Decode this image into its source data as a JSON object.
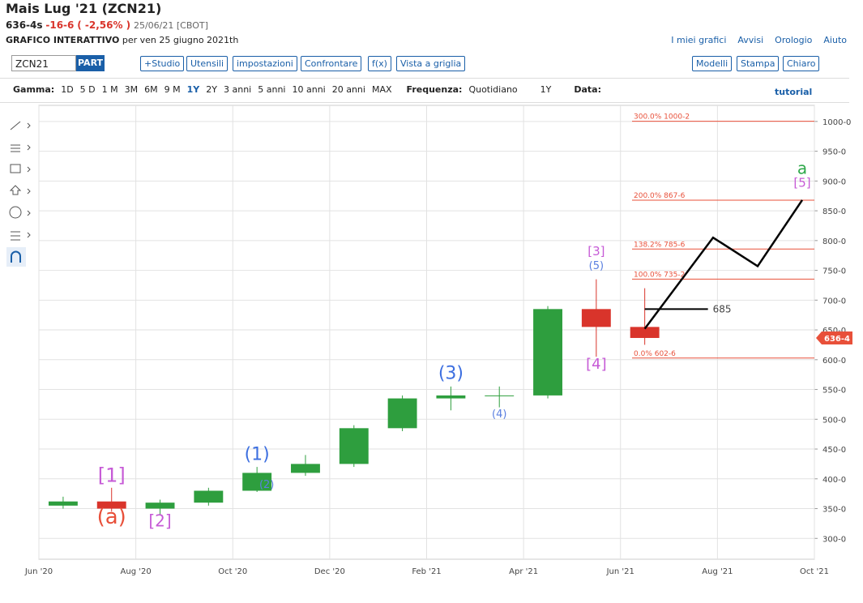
{
  "header": {
    "title": "Mais Lug '21 (ZCN21)",
    "last": "636-4s",
    "change": "-16-6",
    "change_pct": "( -2,56% )",
    "date": "25/06/21 [CBOT]",
    "mode": "GRAFICO INTERATTIVO",
    "mode_date": "per ven 25 giugno 2021th",
    "links": [
      "I miei grafici",
      "Avvisi",
      "Orologio",
      "Aiuto"
    ]
  },
  "toolbar": {
    "symbol": "ZCN21",
    "part": "PART",
    "buttons": [
      "+Studio",
      "Utensili",
      "impostazioni",
      "Confrontare",
      "f(x)",
      "Vista a griglia"
    ],
    "right_buttons": [
      "Modelli",
      "Stampa",
      "Chiaro"
    ]
  },
  "range_bar": {
    "label": "Gamma:",
    "ranges": [
      "1D",
      "5 D",
      "1 M",
      "3M",
      "6M",
      "9 M",
      "1Y",
      "2Y",
      "3 anni",
      "5 anni",
      "10 anni",
      "20 anni",
      "MAX"
    ],
    "selected": "1Y",
    "frequency_label": "Frequenza:",
    "frequency": "Quotidiano",
    "period": "1Y",
    "date_label": "Data:",
    "tutorial": "tutorial"
  },
  "chart_data": {
    "type": "candlestick",
    "x": [
      "2020-06",
      "2020-07",
      "2020-08",
      "2020-09",
      "2020-10",
      "2020-11",
      "2020-12",
      "2021-01",
      "2021-02",
      "2021-03",
      "2021-04",
      "2021-05",
      "2021-06"
    ],
    "open": [
      355,
      362,
      350,
      360,
      380,
      410,
      425,
      485,
      535,
      540,
      540,
      685,
      655
    ],
    "high": [
      370,
      385,
      365,
      385,
      420,
      440,
      490,
      540,
      555,
      555,
      690,
      735,
      720
    ],
    "low": [
      350,
      345,
      340,
      355,
      378,
      405,
      420,
      480,
      515,
      520,
      535,
      605,
      625
    ],
    "close": [
      362,
      350,
      360,
      380,
      410,
      425,
      485,
      535,
      540,
      540,
      685,
      655,
      636.5
    ],
    "up_color": "#2e9e3e",
    "down_color": "#d9342b",
    "xlim": [
      "2020-06",
      "2021-10"
    ],
    "xticks": [
      {
        "value": "2020-06",
        "label": "Jun '20"
      },
      {
        "value": "2020-08",
        "label": "Aug '20"
      },
      {
        "value": "2020-10",
        "label": "Oct '20"
      },
      {
        "value": "2020-12",
        "label": "Dec '20"
      },
      {
        "value": "2021-02",
        "label": "Feb '21"
      },
      {
        "value": "2021-04",
        "label": "Apr '21"
      },
      {
        "value": "2021-06",
        "label": "Jun '21"
      },
      {
        "value": "2021-08",
        "label": "Aug '21"
      },
      {
        "value": "2021-10",
        "label": "Oct '21"
      }
    ],
    "ylim": [
      265,
      1027
    ],
    "yticks": [
      {
        "value": 300,
        "label": "300-0"
      },
      {
        "value": 350,
        "label": "350-0"
      },
      {
        "value": 400,
        "label": "400-0"
      },
      {
        "value": 450,
        "label": "450-0"
      },
      {
        "value": 500,
        "label": "500-0"
      },
      {
        "value": 550,
        "label": "550-0"
      },
      {
        "value": 600,
        "label": "600-0"
      },
      {
        "value": 650,
        "label": "650-0"
      },
      {
        "value": 700,
        "label": "700-0"
      },
      {
        "value": 750,
        "label": "750-0"
      },
      {
        "value": 800,
        "label": "800-0"
      },
      {
        "value": 850,
        "label": "850-0"
      },
      {
        "value": 900,
        "label": "900-0"
      },
      {
        "value": 950,
        "label": "950-0"
      },
      {
        "value": 1000,
        "label": "1000-0"
      }
    ],
    "grid": true,
    "last_price": {
      "value": 636.5,
      "label": "636-4",
      "color": "#e8503a"
    },
    "fib_levels": [
      {
        "value": 1000.25,
        "label": "300.0% 1000-2"
      },
      {
        "value": 867.75,
        "label": "200.0% 867-6"
      },
      {
        "value": 785.75,
        "label": "138.2% 785-6"
      },
      {
        "value": 735.25,
        "label": "100.0% 735-2"
      },
      {
        "value": 602.75,
        "label": "0.0% 602-6"
      }
    ],
    "fib_color": "#e8503a",
    "projection": {
      "values": [
        652,
        805,
        757,
        868
      ],
      "color": "#000"
    },
    "target": {
      "value": 685,
      "label": "685"
    },
    "waves": [
      {
        "text": "(a)",
        "color": "#e8503a"
      },
      {
        "text": "[1]",
        "color": "#c65ad6"
      },
      {
        "text": "[2]",
        "color": "#c65ad6"
      },
      {
        "text": "(1)",
        "color": "#3d6fe0"
      },
      {
        "text": "(2)",
        "color": "#5a7fe0"
      },
      {
        "text": "(3)",
        "color": "#3d6fe0"
      },
      {
        "text": "(4)",
        "color": "#5a7fe0"
      },
      {
        "text": "[3]",
        "color": "#c65ad6"
      },
      {
        "text": "(5)",
        "color": "#5a7fe0"
      },
      {
        "text": "[4]",
        "color": "#c65ad6"
      },
      {
        "text": "[5]",
        "color": "#c65ad6"
      },
      {
        "text": "a",
        "color": "#2ea84a"
      }
    ]
  }
}
